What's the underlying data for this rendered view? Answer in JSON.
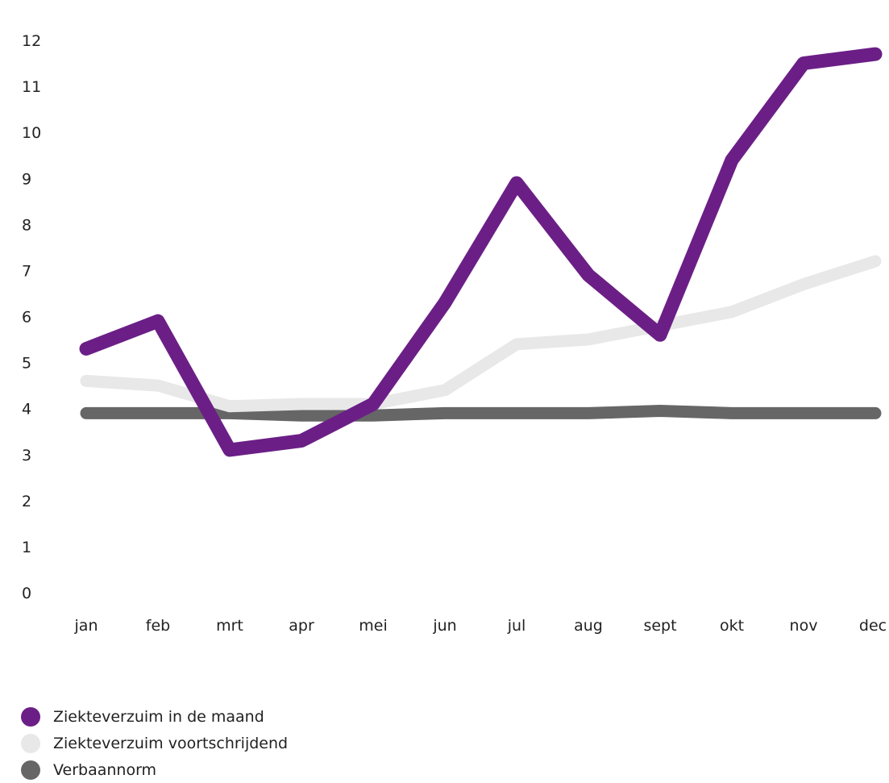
{
  "chart_data": {
    "type": "line",
    "categories": [
      "jan",
      "feb",
      "mrt",
      "apr",
      "mei",
      "jun",
      "jul",
      "aug",
      "sept",
      "okt",
      "nov",
      "dec"
    ],
    "ylim": [
      0,
      12
    ],
    "yticks": [
      "0",
      "1",
      "2",
      "3",
      "4",
      "5",
      "6",
      "7",
      "8",
      "9",
      "10",
      "11",
      "12"
    ],
    "grid": false,
    "legend_position": "bottom-left",
    "series": [
      {
        "name": "Verbaannorm",
        "color": "#666666",
        "values": [
          3.9,
          3.9,
          3.9,
          3.85,
          3.85,
          3.9,
          3.9,
          3.9,
          3.95,
          3.9,
          3.9,
          3.9
        ]
      },
      {
        "name": "Ziekteverzuim voortschrijdend",
        "color": "#e8e8e8",
        "values": [
          4.6,
          4.5,
          4.05,
          4.1,
          4.1,
          4.4,
          5.4,
          5.5,
          5.8,
          6.1,
          6.7,
          7.2
        ]
      },
      {
        "name": "Ziekteverzuim in de maand",
        "color": "#6b1f86",
        "values": [
          5.3,
          5.9,
          3.1,
          3.3,
          4.1,
          6.3,
          8.9,
          6.9,
          5.6,
          9.4,
          11.5,
          11.7
        ]
      }
    ],
    "legend": [
      {
        "label": "Ziekteverzuim in de maand",
        "color": "#6b1f86"
      },
      {
        "label": "Ziekteverzuim voortschrijdend",
        "color": "#e8e8e8"
      },
      {
        "label": "Verbaannorm",
        "color": "#666666"
      }
    ]
  }
}
